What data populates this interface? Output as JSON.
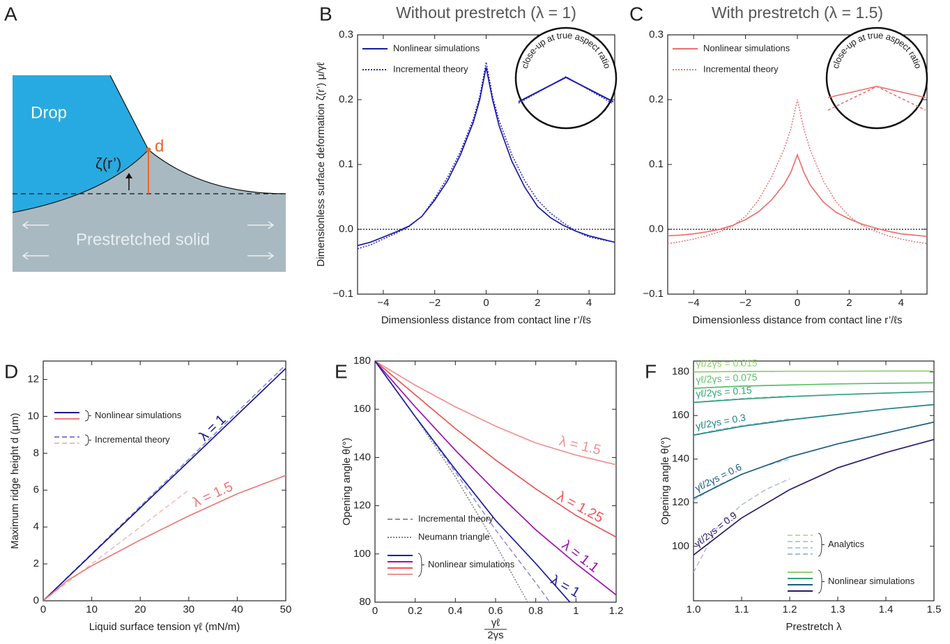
{
  "diagram": {
    "panel": "A",
    "drop": "Drop",
    "d": "d",
    "zeta": "ζ(r’)",
    "solid": "Prestretched solid"
  },
  "chart_data": [
    {
      "type": "line",
      "panel": "B",
      "title": "Without prestretch (λ = 1)",
      "xlabel": "Dimensionless distance from contact line r’/ℓs",
      "ylabel": "Dimensionless surface deformation ζ(r’) μ/γℓ",
      "xlim": [
        -5,
        5
      ],
      "ylim": [
        -0.1,
        0.3
      ],
      "xticks": [
        {
          "value": -4,
          "label": "−4"
        },
        {
          "value": -2,
          "label": "−2"
        },
        {
          "value": 0,
          "label": "0"
        },
        2,
        4
      ],
      "yticks": [
        {
          "value": -0.1,
          "label": "−0.1"
        },
        {
          "value": 0,
          "label": "0.0"
        },
        0.1,
        0.2,
        0.3
      ],
      "zero_line": true,
      "inset_label": "close-up at true aspect ratio",
      "legend_corner": "upper left",
      "legend": [
        {
          "label": "Nonlinear simulations",
          "colors": [
            "#1a1aa0"
          ],
          "style": "solid"
        },
        {
          "label": "Incremental theory",
          "colors": [
            "#2020d0"
          ],
          "style": "dotted"
        }
      ],
      "series": [
        {
          "color": "#1a1aa0",
          "style": "solid",
          "x": [
            -5,
            -4.5,
            -4,
            -3.5,
            -3,
            -2.5,
            -2,
            -1.5,
            -1,
            -0.5,
            -0.25,
            0,
            0.25,
            0.5,
            1,
            1.5,
            2,
            2.5,
            3,
            3.5,
            4,
            4.5,
            5
          ],
          "values": [
            -0.025,
            -0.02,
            -0.012,
            -0.004,
            0.005,
            0.02,
            0.045,
            0.075,
            0.115,
            0.165,
            0.2,
            0.25,
            0.2,
            0.16,
            0.105,
            0.065,
            0.035,
            0.018,
            0.006,
            -0.003,
            -0.01,
            -0.015,
            -0.02
          ]
        },
        {
          "color": "#2020d0",
          "style": "dotted",
          "x": [
            -5,
            -4.5,
            -4,
            -3.5,
            -3,
            -2.5,
            -2,
            -1.5,
            -1,
            -0.5,
            -0.25,
            0,
            0.25,
            0.5,
            1,
            1.5,
            2,
            2.5,
            3,
            3.5,
            4,
            4.5,
            5
          ],
          "values": [
            -0.03,
            -0.024,
            -0.015,
            -0.006,
            0.004,
            0.02,
            0.048,
            0.08,
            0.12,
            0.17,
            0.205,
            0.258,
            0.205,
            0.168,
            0.115,
            0.075,
            0.045,
            0.025,
            0.01,
            -0.003,
            -0.012,
            -0.016,
            -0.02
          ]
        }
      ]
    },
    {
      "type": "line",
      "panel": "C",
      "title": "With prestretch (λ = 1.5)",
      "xlabel": "Dimensionless distance from contact line r’/ℓs",
      "xlim": [
        -5,
        5
      ],
      "ylim": [
        -0.1,
        0.3
      ],
      "xticks": [
        {
          "value": -4,
          "label": "−4"
        },
        {
          "value": -2,
          "label": "−2"
        },
        {
          "value": 0,
          "label": "0"
        },
        2,
        4
      ],
      "yticks": [
        {
          "value": -0.1,
          "label": "−0.1"
        },
        {
          "value": 0,
          "label": "0.0"
        },
        0.1,
        0.2,
        0.3
      ],
      "zero_line": true,
      "inset_label": "close-up at true aspect ratio",
      "legend_corner": "upper left",
      "legend": [
        {
          "label": "Nonlinear simulations",
          "colors": [
            "#f07070"
          ],
          "style": "solid"
        },
        {
          "label": "Incremental theory",
          "colors": [
            "#f07070"
          ],
          "style": "dotted"
        }
      ],
      "series": [
        {
          "color": "#f07070",
          "style": "solid",
          "x": [
            -5,
            -4.5,
            -4,
            -3.5,
            -3,
            -2.5,
            -2,
            -1.5,
            -1,
            -0.5,
            -0.25,
            0,
            0.25,
            0.5,
            1,
            1.5,
            2,
            2.5,
            3,
            3.5,
            4,
            4.5,
            5
          ],
          "values": [
            -0.01,
            -0.009,
            -0.007,
            -0.004,
            0,
            0.006,
            0.015,
            0.027,
            0.045,
            0.07,
            0.088,
            0.115,
            0.088,
            0.068,
            0.042,
            0.026,
            0.016,
            0.008,
            0.002,
            -0.003,
            -0.007,
            -0.009,
            -0.011
          ]
        },
        {
          "color": "#f07070",
          "style": "dotted",
          "x": [
            -5,
            -4.5,
            -4,
            -3.5,
            -3,
            -2.5,
            -2,
            -1.5,
            -1,
            -0.5,
            -0.25,
            0,
            0.25,
            0.5,
            1,
            1.5,
            2,
            2.5,
            3,
            3.5,
            4,
            4.5,
            5
          ],
          "values": [
            -0.022,
            -0.019,
            -0.015,
            -0.01,
            -0.004,
            0.005,
            0.02,
            0.045,
            0.08,
            0.125,
            0.155,
            0.2,
            0.155,
            0.122,
            0.075,
            0.042,
            0.02,
            0.006,
            -0.003,
            -0.01,
            -0.015,
            -0.019,
            -0.022
          ]
        }
      ]
    },
    {
      "type": "line",
      "panel": "D",
      "xlabel": "Liquid surface tension γℓ (mN/m)",
      "ylabel": "Maximum ridge height d (μm)",
      "xlim": [
        0,
        50
      ],
      "ylim": [
        0,
        13
      ],
      "xticks": [
        0,
        10,
        20,
        30,
        40,
        50
      ],
      "yticks": [
        0,
        2,
        4,
        6,
        8,
        10,
        12
      ],
      "legend_corner": "center left",
      "legend": [
        {
          "label": "Nonlinear simulations",
          "colors": [
            "#141496",
            "#f07878"
          ],
          "style": "solid"
        },
        {
          "label": "Incremental theory",
          "colors": [
            "#8080d0",
            "#f8b8b8"
          ],
          "style": "dashed"
        }
      ],
      "series": [
        {
          "color": "#8080d0",
          "style": "dashed",
          "x": [
            0,
            50
          ],
          "values": [
            0,
            12.8
          ]
        },
        {
          "color": "#f8b8b8",
          "style": "dashed",
          "x": [
            0,
            30
          ],
          "values": [
            0,
            6.0
          ]
        },
        {
          "label": "λ = 1",
          "color": "#141496",
          "style": "solid",
          "x": [
            0,
            50
          ],
          "values": [
            0,
            12.6
          ]
        },
        {
          "label": "λ = 1.5",
          "color": "#f07878",
          "style": "solid",
          "x": [
            0,
            5,
            10,
            20,
            30,
            40,
            50
          ],
          "values": [
            0,
            1.1,
            1.9,
            3.3,
            4.6,
            5.8,
            6.8
          ]
        }
      ]
    },
    {
      "type": "line",
      "panel": "E",
      "xlabel_numerator": "γℓ",
      "xlabel_denominator": "2γs",
      "ylabel": "Opening angle  θ(°)",
      "xlim": [
        0,
        1.2
      ],
      "ylim": [
        80,
        180
      ],
      "xticks": [
        0,
        0.2,
        0.4,
        0.6,
        0.8,
        1,
        1.2
      ],
      "yticks": [
        80,
        100,
        120,
        140,
        160,
        180
      ],
      "legend_corner": "lower left",
      "legend": [
        {
          "label": "Incremental theory",
          "colors": [
            "#8a8ad0"
          ],
          "style": "dashed"
        },
        {
          "label": "Neumann triangle",
          "colors": [
            "#808080"
          ],
          "style": "dotted"
        },
        {
          "label": "Nonlinear simulations",
          "colors": [
            "#1c1ca8",
            "#a010b0",
            "#ee5555",
            "#f59090"
          ],
          "style": "solid"
        }
      ],
      "series": [
        {
          "color": "#808080",
          "style": "dotted",
          "x": [
            0,
            0.2,
            0.4,
            0.6,
            0.7,
            0.76
          ],
          "values": [
            180,
            157,
            132,
            104,
            89,
            80
          ]
        },
        {
          "color": "#8a8ad0",
          "style": "dashed",
          "x": [
            0,
            0.2,
            0.4,
            0.6,
            0.8,
            0.87
          ],
          "values": [
            180,
            157,
            134,
            110,
            88,
            80
          ]
        },
        {
          "label": "λ = 1.5",
          "color": "#f59090",
          "style": "solid",
          "x": [
            0,
            0.2,
            0.4,
            0.6,
            0.8,
            1,
            1.2
          ],
          "values": [
            180,
            170,
            161,
            153,
            146,
            141,
            137
          ]
        },
        {
          "label": "λ = 1.25",
          "color": "#ee5555",
          "style": "solid",
          "x": [
            0,
            0.2,
            0.4,
            0.6,
            0.8,
            1,
            1.2
          ],
          "values": [
            180,
            166,
            152,
            139,
            127,
            116,
            107
          ]
        },
        {
          "label": "λ = 1.1",
          "color": "#a010b0",
          "style": "solid",
          "x": [
            0,
            0.2,
            0.4,
            0.6,
            0.8,
            1,
            1.2
          ],
          "values": [
            180,
            161,
            143,
            126,
            110,
            96,
            83
          ]
        },
        {
          "label": "λ = 1",
          "color": "#1c1ca8",
          "style": "solid",
          "x": [
            0,
            0.2,
            0.4,
            0.6,
            0.8,
            0.97
          ],
          "values": [
            180,
            157,
            135,
            114,
            96,
            80
          ]
        }
      ]
    },
    {
      "type": "line",
      "panel": "F",
      "xlabel": "Prestretch λ",
      "ylabel": "Opening angle  θ(°)",
      "xlim": [
        1,
        1.5
      ],
      "ylim": [
        75,
        185
      ],
      "xticks": [
        {
          "value": 1,
          "label": "1.0"
        },
        1.1,
        1.2,
        1.3,
        1.4,
        1.5
      ],
      "yticks": [
        100,
        120,
        140,
        160,
        180
      ],
      "legend_corner": "lower right",
      "legend": [
        {
          "label": "Analytics",
          "colors": [
            "#b8e0a0",
            "#a8d8b8",
            "#a8d0e0",
            "#b0b8d8"
          ],
          "style": "dashed"
        },
        {
          "label": "Nonlinear simulations",
          "colors": [
            "#8fd16a",
            "#33a07a",
            "#1a5a80",
            "#2a1a6a"
          ],
          "style": "solid"
        }
      ],
      "series": [
        {
          "color": "#b8e0a0",
          "style": "dashed",
          "x": [
            1,
            1.05,
            1.1,
            1.15,
            1.2
          ],
          "values": [
            180,
            180.1,
            180.2,
            180.2,
            180.3
          ]
        },
        {
          "color": "#a8d8b8",
          "style": "dashed",
          "x": [
            1,
            1.05,
            1.1,
            1.15,
            1.2
          ],
          "values": [
            172.5,
            173,
            173.5,
            173.8,
            174
          ]
        },
        {
          "color": "#a0d0c8",
          "style": "dashed",
          "x": [
            1,
            1.05,
            1.1,
            1.15,
            1.2
          ],
          "values": [
            166,
            167,
            167.8,
            168.4,
            168.9
          ]
        },
        {
          "color": "#a8d0e0",
          "style": "dashed",
          "x": [
            1,
            1.05,
            1.1,
            1.15,
            1.2
          ],
          "values": [
            151,
            153.5,
            155.5,
            157,
            158.5
          ]
        },
        {
          "color": "#a8c8e0",
          "style": "dashed",
          "x": [
            1,
            1.05,
            1.1,
            1.15,
            1.2
          ],
          "values": [
            121,
            128,
            133,
            137,
            140
          ]
        },
        {
          "color": "#b0b8d8",
          "style": "dashed",
          "x": [
            1,
            1.05,
            1.1,
            1.15,
            1.2
          ],
          "values": [
            88,
            109,
            119,
            126,
            131
          ]
        },
        {
          "label": "γℓ/2γs = 0.015",
          "color": "#8fd16a",
          "style": "solid",
          "x": [
            1,
            1.1,
            1.2,
            1.3,
            1.4,
            1.5
          ],
          "values": [
            180,
            180.2,
            180.3,
            180.3,
            180.4,
            180.4
          ]
        },
        {
          "label": "γℓ/2γs = 0.075",
          "color": "#5ac06a",
          "style": "solid",
          "x": [
            1,
            1.1,
            1.2,
            1.3,
            1.4,
            1.5
          ],
          "values": [
            172.5,
            173.5,
            174,
            174.5,
            174.8,
            175
          ]
        },
        {
          "label": "γℓ/2γs = 0.15",
          "color": "#33a07a",
          "style": "solid",
          "x": [
            1,
            1.1,
            1.2,
            1.3,
            1.4,
            1.5
          ],
          "values": [
            166,
            167.5,
            168.7,
            169.6,
            170.3,
            171
          ]
        },
        {
          "label": "γℓ/2γs = 0.3",
          "color": "#1f8088",
          "style": "solid",
          "x": [
            1,
            1.1,
            1.2,
            1.3,
            1.4,
            1.5
          ],
          "values": [
            151,
            155,
            158,
            160.5,
            163,
            165
          ]
        },
        {
          "label": "γℓ/2γs = 0.6",
          "color": "#1a5a80",
          "style": "solid",
          "x": [
            1,
            1.1,
            1.2,
            1.3,
            1.4,
            1.5
          ],
          "values": [
            122,
            133,
            141,
            147,
            152,
            157
          ]
        },
        {
          "label": "γℓ/2γs = 0.9",
          "color": "#2a1a6a",
          "style": "solid",
          "x": [
            1,
            1.1,
            1.2,
            1.3,
            1.4,
            1.5
          ],
          "values": [
            96,
            113,
            126,
            136,
            143,
            149
          ]
        }
      ]
    }
  ]
}
